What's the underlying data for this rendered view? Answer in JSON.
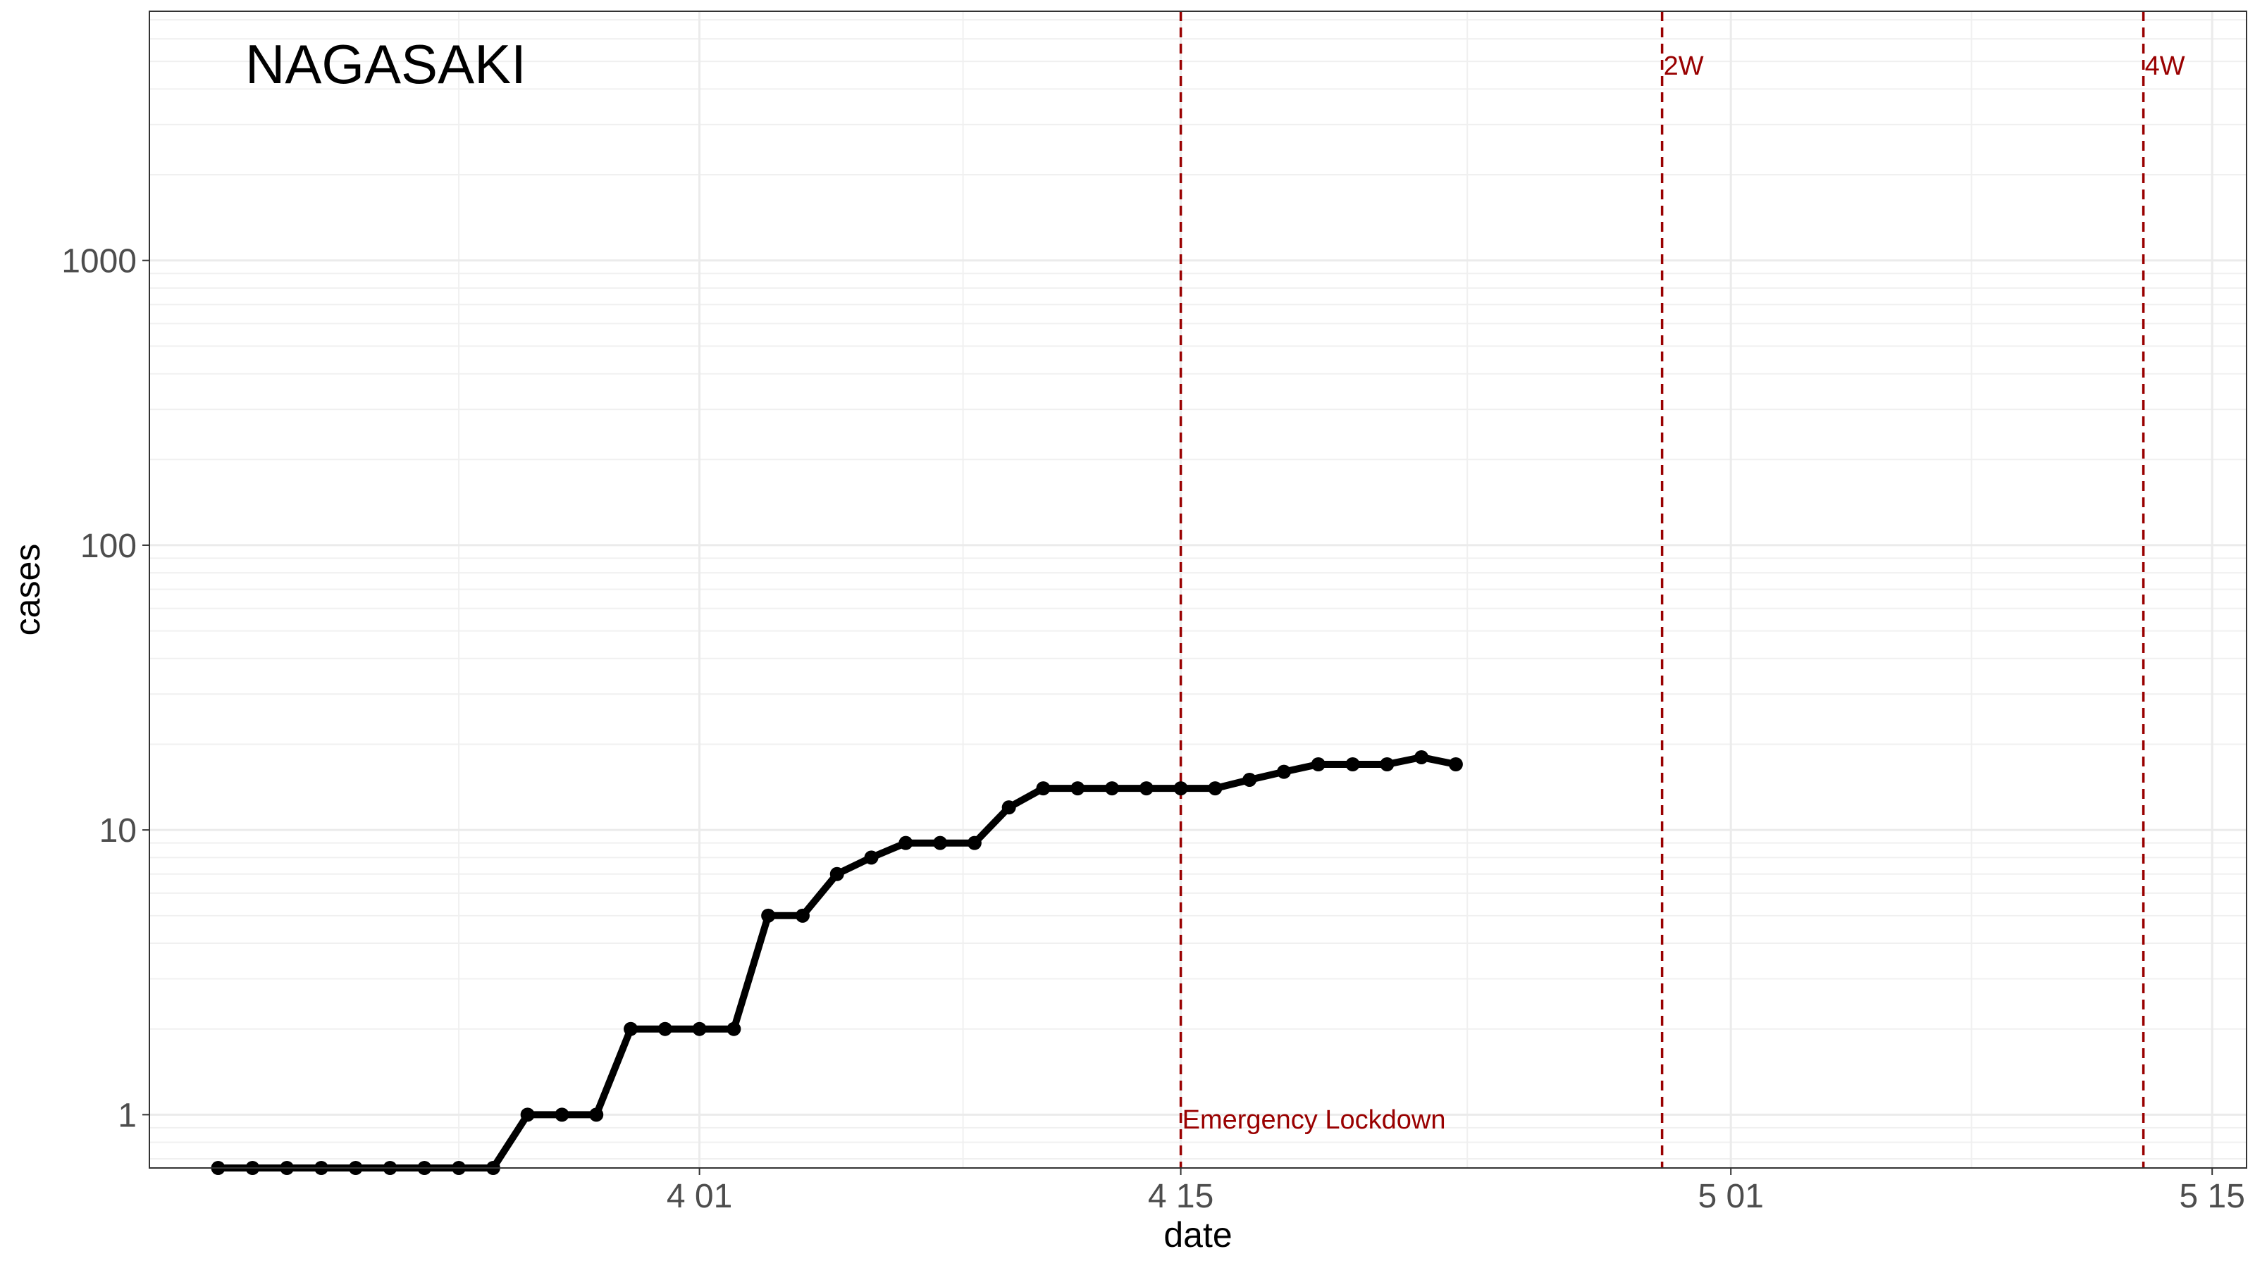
{
  "chart_data": {
    "type": "line",
    "title": "NAGASAKI",
    "xlabel": "date",
    "ylabel": "cases",
    "y_scale": "log10",
    "ylim": [
      0.65,
      7500
    ],
    "xlim": [
      "2020-03-16",
      "2020-05-16"
    ],
    "x_ticks": [
      {
        "date": "2020-04-01",
        "label": "4 01"
      },
      {
        "date": "2020-04-15",
        "label": "4 15"
      },
      {
        "date": "2020-05-01",
        "label": "5 01"
      },
      {
        "date": "2020-05-15",
        "label": "5 15"
      }
    ],
    "y_ticks": [
      {
        "value": 1,
        "label": "1"
      },
      {
        "value": 10,
        "label": "10"
      },
      {
        "value": 100,
        "label": "100"
      },
      {
        "value": 1000,
        "label": "1000"
      }
    ],
    "grid": true,
    "line_color": "#000000",
    "annotation_color": "#990000",
    "series": [
      {
        "x": [
          "2020-03-18",
          "2020-03-19",
          "2020-03-20",
          "2020-03-21",
          "2020-03-22",
          "2020-03-23",
          "2020-03-24",
          "2020-03-25",
          "2020-03-26",
          "2020-03-27",
          "2020-03-28",
          "2020-03-29",
          "2020-03-30",
          "2020-03-31",
          "2020-04-01",
          "2020-04-02",
          "2020-04-03",
          "2020-04-04",
          "2020-04-05",
          "2020-04-06",
          "2020-04-07",
          "2020-04-08",
          "2020-04-09",
          "2020-04-10",
          "2020-04-11",
          "2020-04-12",
          "2020-04-13",
          "2020-04-14",
          "2020-04-15",
          "2020-04-16",
          "2020-04-17",
          "2020-04-18",
          "2020-04-19",
          "2020-04-20",
          "2020-04-21",
          "2020-04-22",
          "2020-04-23",
          "2020-04-24"
        ],
        "values": [
          0.65,
          0.65,
          0.65,
          0.65,
          0.65,
          0.65,
          0.65,
          0.65,
          0.65,
          1,
          1,
          1,
          2,
          2,
          2,
          2,
          5,
          5,
          7,
          8,
          9,
          9,
          9,
          12,
          14,
          14,
          14,
          14,
          14,
          14,
          15,
          16,
          17,
          17,
          17,
          18,
          17,
          null
        ]
      }
    ],
    "vlines": [
      {
        "date": "2020-04-15",
        "label": "Emergency Lockdown",
        "label_pos": "bottom"
      },
      {
        "date": "2020-04-29",
        "label": "2W",
        "label_pos": "top"
      },
      {
        "date": "2020-05-13",
        "label": "4W",
        "label_pos": "top"
      }
    ]
  }
}
